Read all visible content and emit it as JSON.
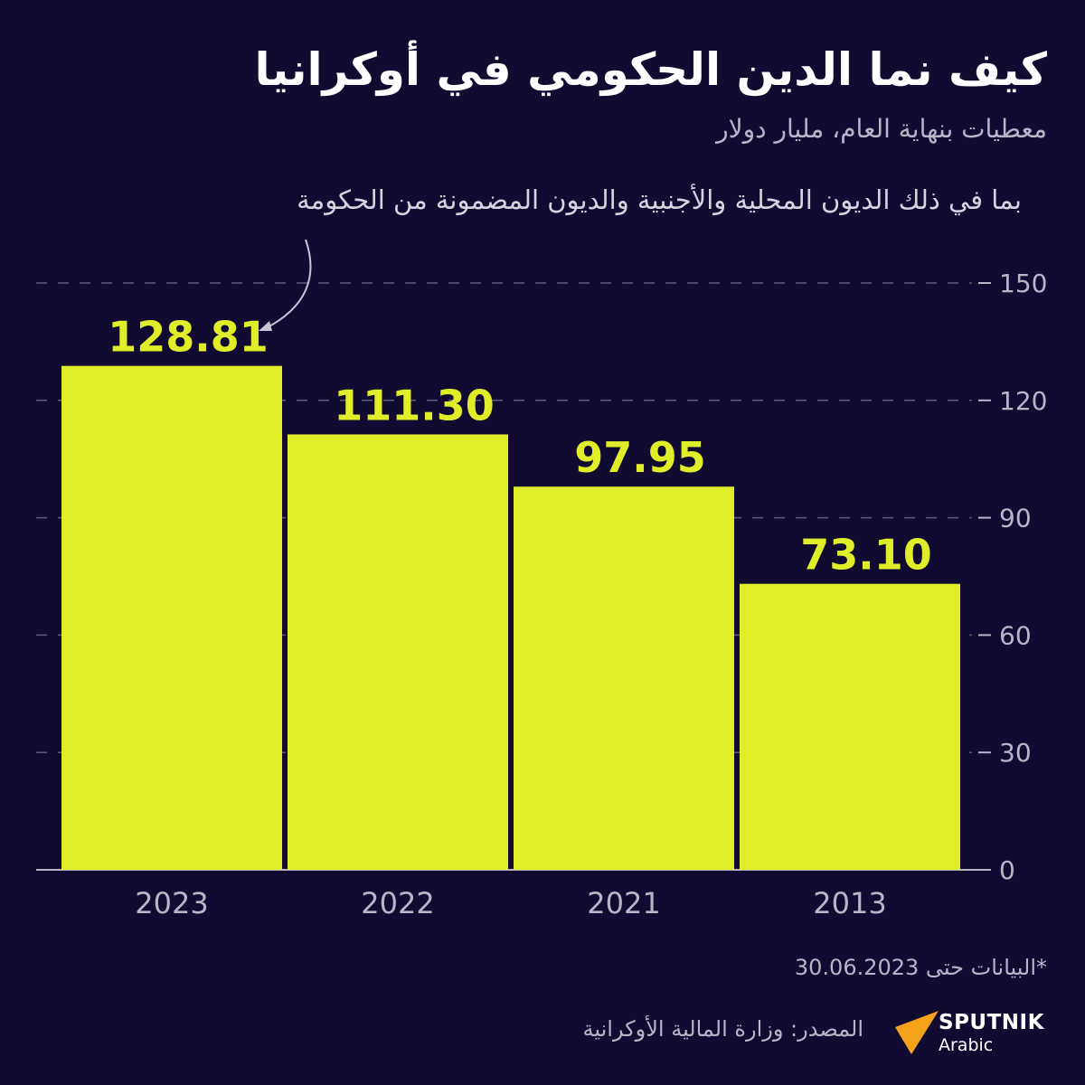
{
  "header": {
    "title": "كيف نما الدين الحكومي في أوكرانيا",
    "subtitle": "معطيات بنهاية العام، مليار دولار",
    "annotation": "بما في ذلك الديون المحلية والأجنبية والديون المضمونة من الحكومة"
  },
  "footer": {
    "note": "*البيانات حتى 30.06.2023",
    "source": "المصدر: وزارة المالية الأوكرانية",
    "logo_name": "SPUTNIK",
    "logo_sub": "Arabic"
  },
  "colors": {
    "background": "#110a31",
    "bar": "#e0ee2a",
    "grid": "#5d5878",
    "axis_text": "#b8b5c6",
    "logo_accent": "#f7a21b"
  },
  "chart_data": {
    "type": "bar",
    "categories": [
      "2023",
      "2022",
      "2021",
      "2013"
    ],
    "values": [
      128.81,
      111.3,
      97.95,
      73.1
    ],
    "value_labels": [
      "128.81",
      "111.30",
      "97.95",
      "73.10"
    ],
    "ylim": [
      0,
      150
    ],
    "yticks": [
      0,
      30,
      60,
      90,
      120,
      150
    ],
    "y_axis_position": "right",
    "grid": true,
    "xlabel": "",
    "ylabel": ""
  }
}
